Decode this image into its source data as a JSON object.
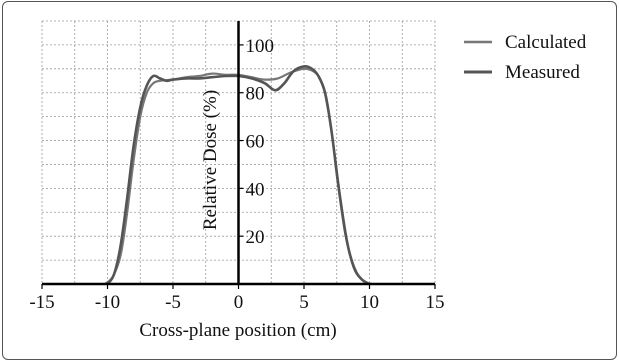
{
  "chart_data": {
    "type": "line",
    "title": "",
    "xlabel": "Cross-plane position (cm)",
    "ylabel": "Relative Dose (%)",
    "xlim": [
      -15,
      15
    ],
    "ylim": [
      0,
      110
    ],
    "x_ticks": [
      -15,
      -10,
      -5,
      0,
      5,
      10,
      15
    ],
    "y_ticks": [
      20,
      40,
      60,
      80,
      100
    ],
    "grid": true,
    "legend_position": "top-right",
    "series": [
      {
        "name": "Calculated",
        "color": "#777777",
        "points": [
          [
            -10.2,
            0
          ],
          [
            -9.6,
            3
          ],
          [
            -9.0,
            12
          ],
          [
            -8.5,
            30
          ],
          [
            -8.0,
            52
          ],
          [
            -7.5,
            70
          ],
          [
            -7.0,
            80
          ],
          [
            -6.5,
            84
          ],
          [
            -6.0,
            85
          ],
          [
            -5.0,
            85.5
          ],
          [
            -4.0,
            86.5
          ],
          [
            -3.0,
            87
          ],
          [
            -2.0,
            88
          ],
          [
            -1.0,
            87.5
          ],
          [
            0.0,
            87.5
          ],
          [
            1.0,
            86.5
          ],
          [
            2.0,
            85.5
          ],
          [
            3.0,
            86
          ],
          [
            4.0,
            88.5
          ],
          [
            5.0,
            90
          ],
          [
            5.7,
            89
          ],
          [
            6.2,
            86
          ],
          [
            6.7,
            78
          ],
          [
            7.2,
            60
          ],
          [
            7.8,
            35
          ],
          [
            8.4,
            15
          ],
          [
            9.0,
            5
          ],
          [
            9.6,
            1
          ],
          [
            10.2,
            0
          ]
        ]
      },
      {
        "name": "Measured",
        "color": "#555555",
        "points": [
          [
            -10.0,
            0
          ],
          [
            -9.5,
            4
          ],
          [
            -9.0,
            16
          ],
          [
            -8.5,
            36
          ],
          [
            -8.0,
            58
          ],
          [
            -7.5,
            74
          ],
          [
            -7.0,
            83
          ],
          [
            -6.5,
            87
          ],
          [
            -6.0,
            86
          ],
          [
            -5.5,
            85
          ],
          [
            -5.0,
            85.5
          ],
          [
            -4.0,
            86
          ],
          [
            -3.0,
            86
          ],
          [
            -2.0,
            86.5
          ],
          [
            -1.0,
            87
          ],
          [
            0.0,
            87
          ],
          [
            1.0,
            86
          ],
          [
            2.0,
            84
          ],
          [
            2.8,
            81
          ],
          [
            3.5,
            84
          ],
          [
            4.2,
            89
          ],
          [
            5.0,
            91
          ],
          [
            5.6,
            90
          ],
          [
            6.1,
            87
          ],
          [
            6.6,
            80
          ],
          [
            7.1,
            64
          ],
          [
            7.6,
            42
          ],
          [
            8.2,
            20
          ],
          [
            8.8,
            7
          ],
          [
            9.4,
            2
          ],
          [
            10.0,
            0
          ]
        ]
      }
    ]
  }
}
